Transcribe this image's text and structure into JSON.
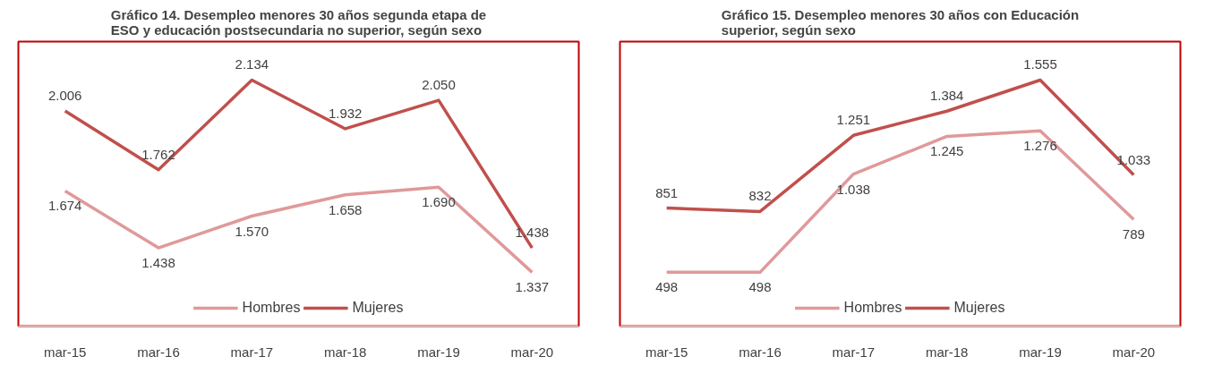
{
  "chart_data": [
    {
      "type": "line",
      "title": "Gráfico 14. Desempleo menores 30 años segunda etapa de\nESO y educación postsecundaria no superior, según sexo",
      "categories": [
        "mar-15",
        "mar-16",
        "mar-17",
        "mar-18",
        "mar-19",
        "mar-20"
      ],
      "tick_labels": "x",
      "grid": false,
      "legend": "bottom",
      "series": [
        {
          "name": "Hombres",
          "color": "#e0999a",
          "values": [
            1674,
            1438,
            1570,
            1658,
            1690,
            1337
          ],
          "value_labels": [
            "1.674",
            "1.438",
            "1.570",
            "1.658",
            "1.690",
            "1.337"
          ]
        },
        {
          "name": "Mujeres",
          "color": "#c0504d",
          "values": [
            2006,
            1762,
            2134,
            1932,
            2050,
            1438
          ],
          "value_labels": [
            "2.006",
            "1.762",
            "2.134",
            "1.932",
            "2.050",
            "1.438"
          ]
        }
      ]
    },
    {
      "type": "line",
      "title": "Gráfico 15. Desempleo menores 30 años con Educación\nsuperior, según sexo",
      "categories": [
        "mar-15",
        "mar-16",
        "mar-17",
        "mar-18",
        "mar-19",
        "mar-20"
      ],
      "tick_labels": "x",
      "grid": false,
      "legend": "bottom",
      "series": [
        {
          "name": "Hombres",
          "color": "#e0999a",
          "values": [
            498,
            498,
            1038,
            1245,
            1276,
            789
          ],
          "value_labels": [
            "498",
            "498",
            "1.038",
            "1.245",
            "1.276",
            "789"
          ]
        },
        {
          "name": "Mujeres",
          "color": "#c0504d",
          "values": [
            851,
            832,
            1251,
            1384,
            1555,
            1033
          ],
          "value_labels": [
            "851",
            "832",
            "1.251",
            "1.384",
            "1.555",
            "1.033"
          ]
        }
      ]
    }
  ]
}
